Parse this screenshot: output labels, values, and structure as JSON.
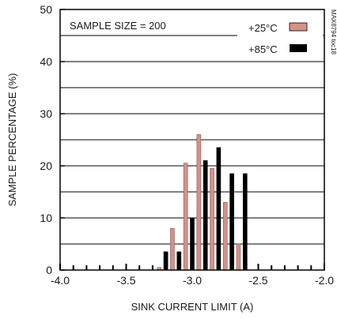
{
  "chart_data": {
    "type": "bar",
    "xlabel": "SINK CURRENT LIMIT (A)",
    "ylabel": "SAMPLE PERCENTAGE (%)",
    "xlim": [
      -4.0,
      -2.0
    ],
    "ylim": [
      0,
      50
    ],
    "x_ticks": [
      "-4.0",
      "-3.5",
      "-3.0",
      "-2.5",
      "-2.0"
    ],
    "x_tick_values": [
      -4.0,
      -3.5,
      -3.0,
      -2.5,
      -2.0
    ],
    "y_ticks": [
      "0",
      "10",
      "20",
      "30",
      "40",
      "50"
    ],
    "y_tick_values": [
      0,
      10,
      20,
      30,
      40,
      50
    ],
    "grid": "horizontal",
    "legend_position": "top-right",
    "annotation": "SAMPLE SIZE = 200",
    "side_note": "MAX8794 toc18",
    "series": [
      {
        "name": "+25°C",
        "color": "#d4918a",
        "points": [
          {
            "x": -3.25,
            "y": 0.5
          },
          {
            "x": -3.2,
            "y": 3.5
          },
          {
            "x": -3.15,
            "y": 8.0
          },
          {
            "x": -3.05,
            "y": 20.5
          },
          {
            "x": -2.95,
            "y": 26.0
          },
          {
            "x": -2.85,
            "y": 19.5
          },
          {
            "x": -2.75,
            "y": 13.0
          },
          {
            "x": -2.65,
            "y": 5.0
          },
          {
            "x": -2.6,
            "y": 2.5
          }
        ]
      },
      {
        "name": "+85°C",
        "color": "#000000",
        "points": [
          {
            "x": -3.2,
            "y": 3.5
          },
          {
            "x": -3.1,
            "y": 3.5
          },
          {
            "x": -3.0,
            "y": 10.0
          },
          {
            "x": -2.9,
            "y": 21.0
          },
          {
            "x": -2.8,
            "y": 23.5
          },
          {
            "x": -2.7,
            "y": 18.5
          },
          {
            "x": -2.6,
            "y": 18.5
          }
        ]
      }
    ]
  }
}
